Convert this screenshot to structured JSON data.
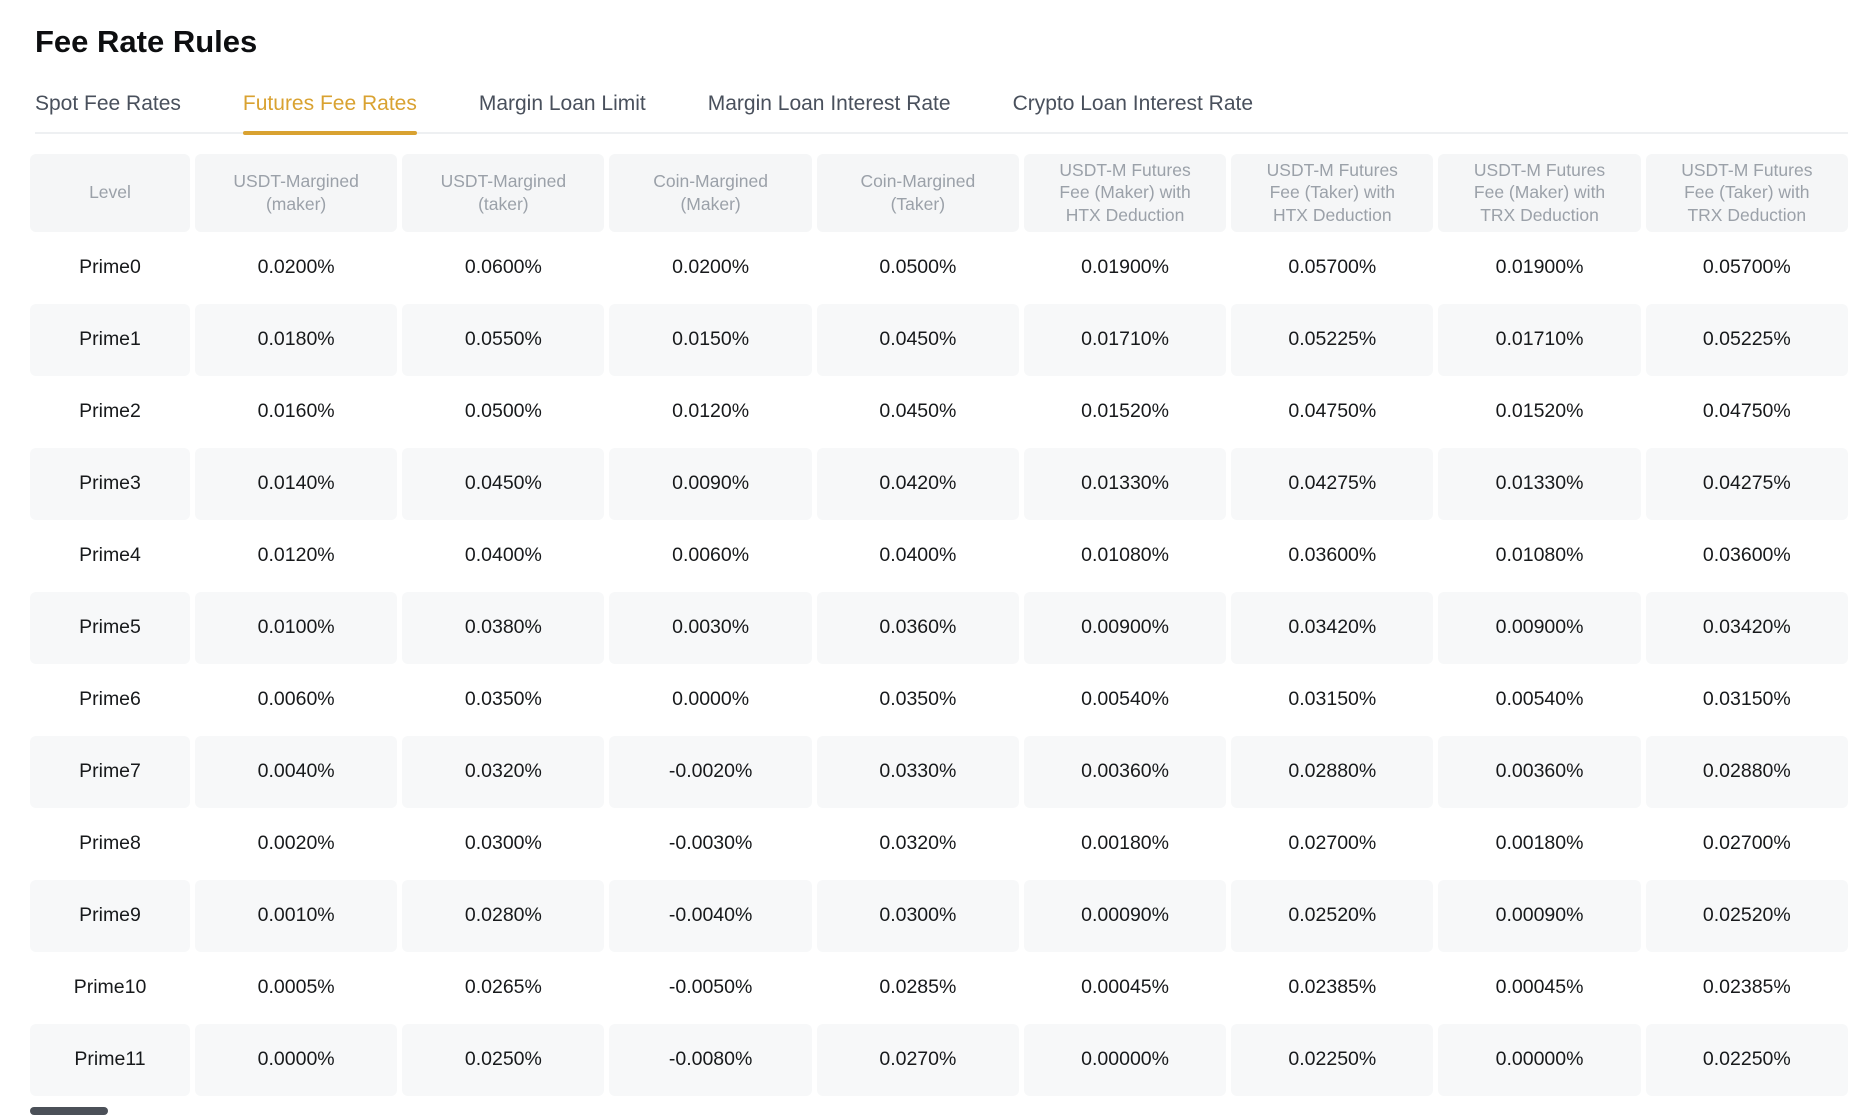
{
  "page": {
    "title": "Fee Rate Rules"
  },
  "colors": {
    "accent": "#d9a231",
    "header-text": "#9ba1a9",
    "cell-text": "#17191b"
  },
  "tabs": [
    {
      "label": "Spot Fee Rates",
      "active": false
    },
    {
      "label": "Futures Fee Rates",
      "active": true
    },
    {
      "label": "Margin Loan Limit",
      "active": false
    },
    {
      "label": "Margin Loan Interest Rate",
      "active": false
    },
    {
      "label": "Crypto Loan Interest Rate",
      "active": false
    }
  ],
  "table": {
    "columns": [
      "Level",
      "USDT-Margined\n(maker)",
      "USDT-Margined\n(taker)",
      "Coin-Margined\n(Maker)",
      "Coin-Margined\n(Taker)",
      "USDT-M Futures\nFee (Maker) with\nHTX Deduction",
      "USDT-M Futures\nFee (Taker) with\nHTX Deduction",
      "USDT-M Futures\nFee (Maker) with\nTRX Deduction",
      "USDT-M Futures\nFee (Taker) with\nTRX Deduction"
    ],
    "rows": [
      {
        "level": "Prime0",
        "values": [
          "0.0200%",
          "0.0600%",
          "0.0200%",
          "0.0500%",
          "0.01900%",
          "0.05700%",
          "0.01900%",
          "0.05700%"
        ]
      },
      {
        "level": "Prime1",
        "values": [
          "0.0180%",
          "0.0550%",
          "0.0150%",
          "0.0450%",
          "0.01710%",
          "0.05225%",
          "0.01710%",
          "0.05225%"
        ]
      },
      {
        "level": "Prime2",
        "values": [
          "0.0160%",
          "0.0500%",
          "0.0120%",
          "0.0450%",
          "0.01520%",
          "0.04750%",
          "0.01520%",
          "0.04750%"
        ]
      },
      {
        "level": "Prime3",
        "values": [
          "0.0140%",
          "0.0450%",
          "0.0090%",
          "0.0420%",
          "0.01330%",
          "0.04275%",
          "0.01330%",
          "0.04275%"
        ]
      },
      {
        "level": "Prime4",
        "values": [
          "0.0120%",
          "0.0400%",
          "0.0060%",
          "0.0400%",
          "0.01080%",
          "0.03600%",
          "0.01080%",
          "0.03600%"
        ]
      },
      {
        "level": "Prime5",
        "values": [
          "0.0100%",
          "0.0380%",
          "0.0030%",
          "0.0360%",
          "0.00900%",
          "0.03420%",
          "0.00900%",
          "0.03420%"
        ]
      },
      {
        "level": "Prime6",
        "values": [
          "0.0060%",
          "0.0350%",
          "0.0000%",
          "0.0350%",
          "0.00540%",
          "0.03150%",
          "0.00540%",
          "0.03150%"
        ]
      },
      {
        "level": "Prime7",
        "values": [
          "0.0040%",
          "0.0320%",
          "-0.0020%",
          "0.0330%",
          "0.00360%",
          "0.02880%",
          "0.00360%",
          "0.02880%"
        ]
      },
      {
        "level": "Prime8",
        "values": [
          "0.0020%",
          "0.0300%",
          "-0.0030%",
          "0.0320%",
          "0.00180%",
          "0.02700%",
          "0.00180%",
          "0.02700%"
        ]
      },
      {
        "level": "Prime9",
        "values": [
          "0.0010%",
          "0.0280%",
          "-0.0040%",
          "0.0300%",
          "0.00090%",
          "0.02520%",
          "0.00090%",
          "0.02520%"
        ]
      },
      {
        "level": "Prime10",
        "values": [
          "0.0005%",
          "0.0265%",
          "-0.0050%",
          "0.0285%",
          "0.00045%",
          "0.02385%",
          "0.00045%",
          "0.02385%"
        ]
      },
      {
        "level": "Prime11",
        "values": [
          "0.0000%",
          "0.0250%",
          "-0.0080%",
          "0.0270%",
          "0.00000%",
          "0.02250%",
          "0.00000%",
          "0.02250%"
        ]
      }
    ]
  }
}
